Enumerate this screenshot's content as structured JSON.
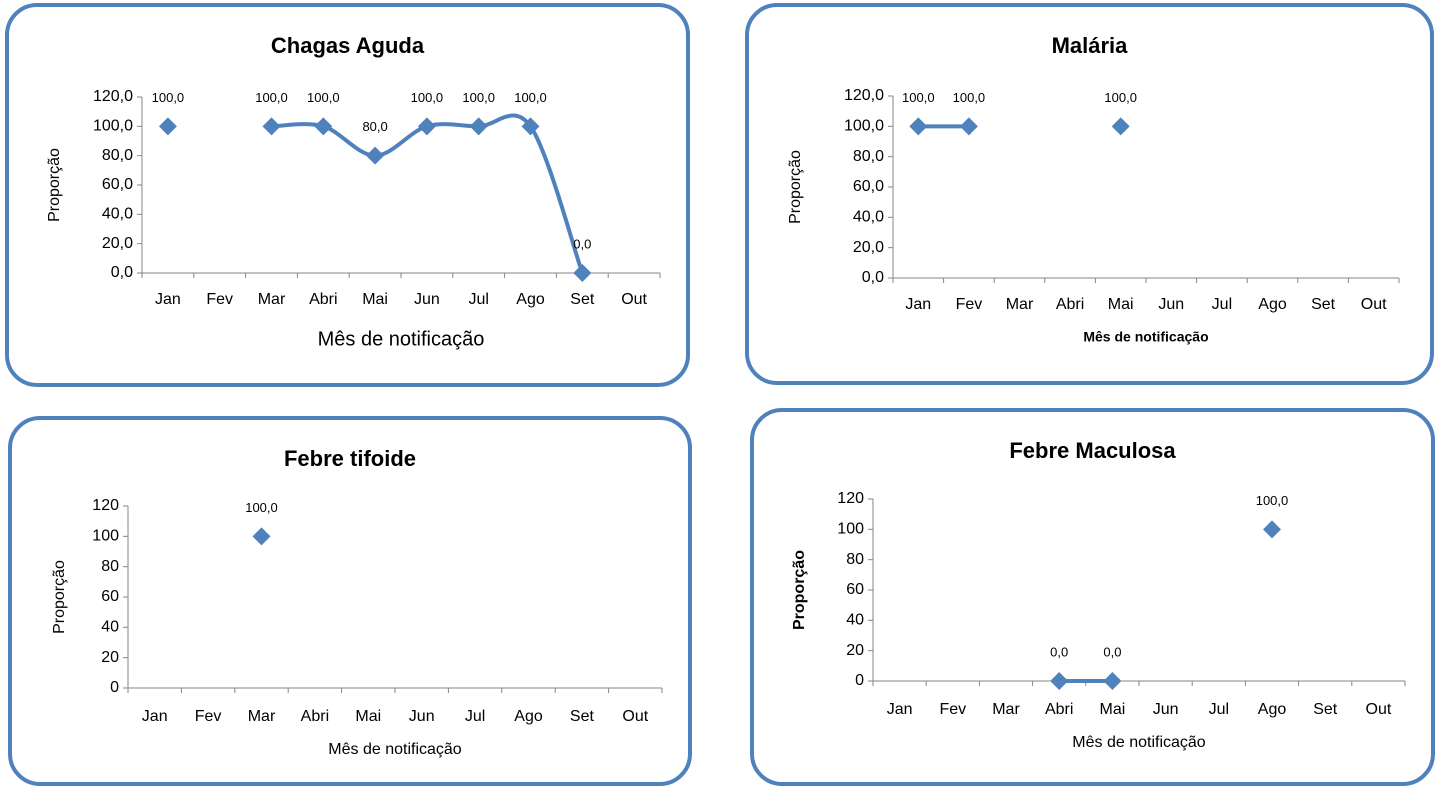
{
  "chart_data": [
    {
      "type": "line",
      "title": "Chagas Aguda",
      "x_label": "Mês de notificação",
      "y_label": "Proporção",
      "smooth": true,
      "categories": [
        "Jan",
        "Fev",
        "Mar",
        "Abri",
        "Mai",
        "Jun",
        "Jul",
        "Ago",
        "Set",
        "Out"
      ],
      "series": [
        {
          "name": "Chagas Aguda",
          "color": "#4f81bd",
          "values": [
            100,
            null,
            100,
            100,
            80,
            100,
            100,
            100,
            0,
            null
          ],
          "value_labels": [
            "100,0",
            null,
            "100,0",
            "100,0",
            "80,0",
            "100,0",
            "100,0",
            "100,0",
            "0,0",
            null
          ]
        }
      ],
      "ylim": [
        0,
        120
      ],
      "yticks": [
        {
          "value": 0,
          "label": "0,0"
        },
        {
          "value": 20,
          "label": "20,0"
        },
        {
          "value": 40,
          "label": "40,0"
        },
        {
          "value": 60,
          "label": "60,0"
        },
        {
          "value": 80,
          "label": "80,0"
        },
        {
          "value": 100,
          "label": "100,0"
        },
        {
          "value": 120,
          "label": "120,0"
        }
      ]
    },
    {
      "type": "line",
      "title": "Malária",
      "x_label": "Mês de notificação",
      "y_label": "Proporção",
      "smooth": false,
      "categories": [
        "Jan",
        "Fev",
        "Mar",
        "Abri",
        "Mai",
        "Jun",
        "Jul",
        "Ago",
        "Set",
        "Out"
      ],
      "series": [
        {
          "name": "Malária",
          "color": "#4f81bd",
          "values": [
            100,
            100,
            null,
            null,
            100,
            null,
            null,
            null,
            null,
            null
          ],
          "value_labels": [
            "100,0",
            "100,0",
            null,
            null,
            "100,0",
            null,
            null,
            null,
            null,
            null
          ]
        }
      ],
      "ylim": [
        0,
        120
      ],
      "yticks": [
        {
          "value": 0,
          "label": "0,0"
        },
        {
          "value": 20,
          "label": "20,0"
        },
        {
          "value": 40,
          "label": "40,0"
        },
        {
          "value": 60,
          "label": "60,0"
        },
        {
          "value": 80,
          "label": "80,0"
        },
        {
          "value": 100,
          "label": "100,0"
        },
        {
          "value": 120,
          "label": "120,0"
        }
      ]
    },
    {
      "type": "line",
      "title": "Febre tifoide",
      "x_label": "Mês de notificação",
      "y_label": "Proporção",
      "smooth": false,
      "categories": [
        "Jan",
        "Fev",
        "Mar",
        "Abri",
        "Mai",
        "Jun",
        "Jul",
        "Ago",
        "Set",
        "Out"
      ],
      "series": [
        {
          "name": "Febre tifoide",
          "color": "#4f81bd",
          "values": [
            null,
            null,
            100,
            null,
            null,
            null,
            null,
            null,
            null,
            null
          ],
          "value_labels": [
            null,
            null,
            "100,0",
            null,
            null,
            null,
            null,
            null,
            null,
            null
          ]
        }
      ],
      "ylim": [
        0,
        120
      ],
      "yticks": [
        0,
        20,
        40,
        60,
        80,
        100,
        120
      ]
    },
    {
      "type": "line",
      "title": "Febre Maculosa",
      "x_label": "Mês de notificação",
      "y_label": "Proporção",
      "smooth": false,
      "categories": [
        "Jan",
        "Fev",
        "Mar",
        "Abri",
        "Mai",
        "Jun",
        "Jul",
        "Ago",
        "Set",
        "Out"
      ],
      "series": [
        {
          "name": "Febre Maculosa",
          "color": "#4f81bd",
          "values": [
            null,
            null,
            null,
            0,
            0,
            null,
            null,
            100,
            null,
            null
          ],
          "value_labels": [
            null,
            null,
            null,
            "0,0",
            "0,0",
            null,
            null,
            "100,0",
            null,
            null
          ]
        }
      ],
      "ylim": [
        0,
        120
      ],
      "yticks": [
        0,
        20,
        40,
        60,
        80,
        100,
        120
      ]
    }
  ]
}
